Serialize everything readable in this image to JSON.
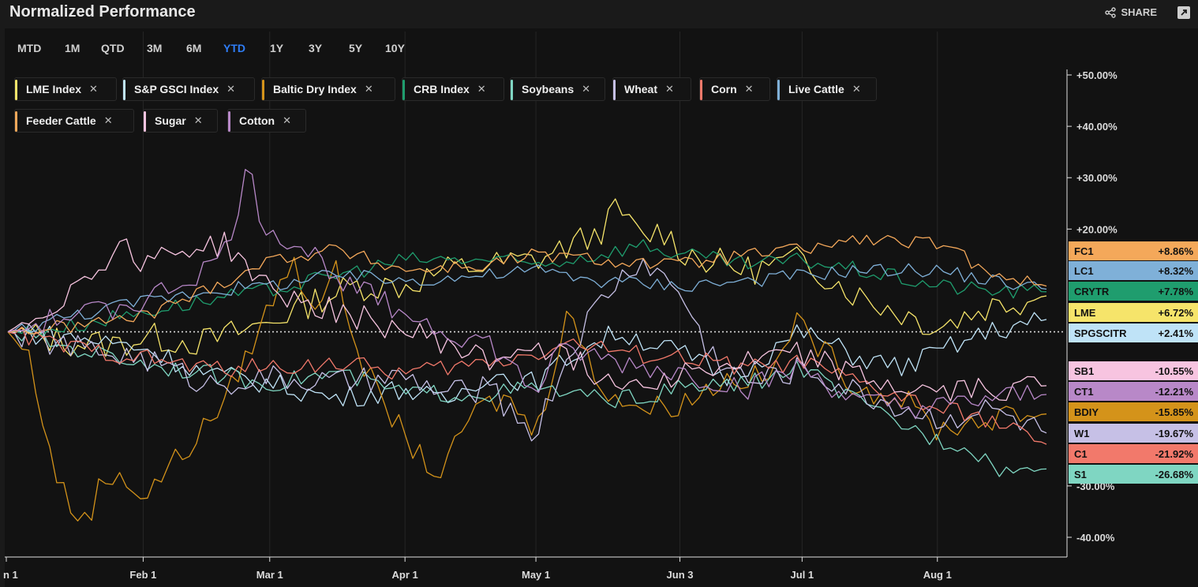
{
  "header": {
    "title": "Normalized Performance",
    "share_label": "SHARE"
  },
  "ranges": [
    {
      "label": "MTD",
      "active": false
    },
    {
      "label": "1M",
      "active": false
    },
    {
      "label": "QTD",
      "active": false
    },
    {
      "label": "3M",
      "active": false
    },
    {
      "label": "6M",
      "active": false
    },
    {
      "label": "YTD",
      "active": true
    },
    {
      "label": "1Y",
      "active": false
    },
    {
      "label": "3Y",
      "active": false
    },
    {
      "label": "5Y",
      "active": false
    },
    {
      "label": "10Y",
      "active": false
    }
  ],
  "chips": [
    {
      "label": "LME Index",
      "color": "#f6e46a"
    },
    {
      "label": "S&P GSCI Index",
      "color": "#bfe3f7"
    },
    {
      "label": "Baltic Dry Index",
      "color": "#d4931a"
    },
    {
      "label": "CRB Index",
      "color": "#1f9d6e"
    },
    {
      "label": "Soybeans",
      "color": "#7fd6c2"
    },
    {
      "label": "Wheat",
      "color": "#c6c0e6"
    },
    {
      "label": "Corn",
      "color": "#f2796b"
    },
    {
      "label": "Live Cattle",
      "color": "#7fb0d8"
    },
    {
      "label": "Feeder Cattle",
      "color": "#f4a85a"
    },
    {
      "label": "Sugar",
      "color": "#f7c4e0"
    },
    {
      "label": "Cotton",
      "color": "#b888c8"
    }
  ],
  "chart_data": {
    "type": "line",
    "x_ticks": [
      "n 1",
      "Feb 1",
      "Mar 1",
      "Apr 1",
      "May 1",
      "Jun 3",
      "Jul 1",
      "Aug 1"
    ],
    "y_ticks": [
      "+50.00%",
      "+40.00%",
      "+30.00%",
      "+20.00%",
      "-30.00%",
      "-40.00%"
    ],
    "ylim": [
      -40,
      50
    ],
    "x_anchors": [
      0,
      31,
      60,
      91,
      121,
      154,
      182,
      213
    ],
    "x_max": 238,
    "series": [
      {
        "name": "LME Index",
        "symbol": "LME",
        "final": "+6.72%",
        "color": "#f6e46a",
        "amp": 3.0,
        "points": [
          [
            0,
            0
          ],
          [
            14,
            -2
          ],
          [
            25,
            -2.5
          ],
          [
            31,
            -1
          ],
          [
            45,
            -2
          ],
          [
            55,
            0.5
          ],
          [
            60,
            2
          ],
          [
            70,
            6
          ],
          [
            80,
            9
          ],
          [
            91,
            9
          ],
          [
            100,
            12
          ],
          [
            110,
            13
          ],
          [
            121,
            14
          ],
          [
            135,
            19
          ],
          [
            140,
            24
          ],
          [
            145,
            18
          ],
          [
            150,
            20
          ],
          [
            154,
            16
          ],
          [
            160,
            14
          ],
          [
            170,
            12
          ],
          [
            182,
            14
          ],
          [
            195,
            7
          ],
          [
            213,
            1
          ],
          [
            225,
            5
          ],
          [
            238,
            7
          ]
        ]
      },
      {
        "name": "S&P GSCI Index",
        "symbol": "SPGSCITR",
        "final": "+2.41%",
        "color": "#bfe3f7",
        "amp": 2.2,
        "points": [
          [
            0,
            0
          ],
          [
            14,
            -1
          ],
          [
            31,
            -3
          ],
          [
            45,
            -8
          ],
          [
            60,
            -10
          ],
          [
            75,
            -13
          ],
          [
            91,
            -11
          ],
          [
            100,
            -14
          ],
          [
            110,
            -8
          ],
          [
            121,
            -10
          ],
          [
            130,
            -4
          ],
          [
            140,
            0
          ],
          [
            154,
            -4
          ],
          [
            165,
            -9
          ],
          [
            182,
            0
          ],
          [
            195,
            -5
          ],
          [
            205,
            -7
          ],
          [
            213,
            -4
          ],
          [
            225,
            0
          ],
          [
            238,
            2.4
          ]
        ]
      },
      {
        "name": "Baltic Dry Index",
        "symbol": "BDIY",
        "final": "-15.85%",
        "color": "#d4931a",
        "amp": 2.5,
        "points": [
          [
            0,
            0
          ],
          [
            5,
            -5
          ],
          [
            10,
            -25
          ],
          [
            14,
            -34
          ],
          [
            18,
            -37
          ],
          [
            21,
            -30
          ],
          [
            26,
            -27
          ],
          [
            31,
            -33
          ],
          [
            36,
            -27
          ],
          [
            42,
            -22
          ],
          [
            50,
            -13
          ],
          [
            55,
            -4
          ],
          [
            60,
            5
          ],
          [
            65,
            14
          ],
          [
            70,
            5
          ],
          [
            75,
            12
          ],
          [
            80,
            -3
          ],
          [
            85,
            -13
          ],
          [
            95,
            -25
          ],
          [
            100,
            -28
          ],
          [
            105,
            -17
          ],
          [
            110,
            -14
          ],
          [
            115,
            -13
          ],
          [
            121,
            -20
          ],
          [
            125,
            -7
          ],
          [
            128,
            5
          ],
          [
            135,
            -10
          ],
          [
            145,
            -15
          ],
          [
            154,
            -14
          ],
          [
            165,
            -9
          ],
          [
            175,
            -9
          ],
          [
            180,
            2
          ],
          [
            183,
            0
          ],
          [
            195,
            -11
          ],
          [
            205,
            -13
          ],
          [
            213,
            -19
          ],
          [
            225,
            -17
          ],
          [
            238,
            -16
          ]
        ]
      },
      {
        "name": "CRB Index",
        "symbol": "CRYTR",
        "final": "+7.78%",
        "color": "#1f9d6e",
        "amp": 1.6,
        "points": [
          [
            0,
            0
          ],
          [
            14,
            1
          ],
          [
            31,
            4
          ],
          [
            45,
            6
          ],
          [
            60,
            8
          ],
          [
            75,
            11
          ],
          [
            91,
            14
          ],
          [
            110,
            14
          ],
          [
            121,
            13
          ],
          [
            135,
            15
          ],
          [
            145,
            17
          ],
          [
            154,
            15
          ],
          [
            170,
            13
          ],
          [
            182,
            14
          ],
          [
            195,
            12
          ],
          [
            213,
            9
          ],
          [
            225,
            8
          ],
          [
            238,
            7.8
          ]
        ]
      },
      {
        "name": "Soybeans",
        "symbol": "S1",
        "final": "-26.68%",
        "color": "#7fd6c2",
        "amp": 1.8,
        "points": [
          [
            0,
            0
          ],
          [
            14,
            -3
          ],
          [
            31,
            -6
          ],
          [
            45,
            -8
          ],
          [
            60,
            -10
          ],
          [
            75,
            -8
          ],
          [
            91,
            -12
          ],
          [
            110,
            -12
          ],
          [
            121,
            -11
          ],
          [
            135,
            -13
          ],
          [
            145,
            -13
          ],
          [
            154,
            -11
          ],
          [
            170,
            -10
          ],
          [
            182,
            -7
          ],
          [
            195,
            -14
          ],
          [
            205,
            -18
          ],
          [
            213,
            -21
          ],
          [
            220,
            -22
          ],
          [
            228,
            -27
          ],
          [
            238,
            -26.7
          ]
        ]
      },
      {
        "name": "Wheat",
        "symbol": "W1",
        "final": "-19.67%",
        "color": "#c6c0e6",
        "amp": 2.6,
        "points": [
          [
            0,
            0
          ],
          [
            14,
            -3
          ],
          [
            31,
            -5
          ],
          [
            45,
            -10
          ],
          [
            60,
            -9
          ],
          [
            75,
            -10
          ],
          [
            91,
            -9
          ],
          [
            100,
            -12
          ],
          [
            110,
            -11
          ],
          [
            121,
            -20
          ],
          [
            125,
            -11
          ],
          [
            130,
            -2
          ],
          [
            135,
            5
          ],
          [
            140,
            10
          ],
          [
            145,
            14
          ],
          [
            154,
            8
          ],
          [
            160,
            -3
          ],
          [
            170,
            -10
          ],
          [
            182,
            -7
          ],
          [
            195,
            -12
          ],
          [
            213,
            -17
          ],
          [
            225,
            -15
          ],
          [
            238,
            -19.7
          ]
        ]
      },
      {
        "name": "Corn",
        "symbol": "C1",
        "final": "-21.92%",
        "color": "#f2796b",
        "amp": 1.8,
        "points": [
          [
            0,
            0
          ],
          [
            14,
            -3
          ],
          [
            31,
            -5
          ],
          [
            45,
            -7
          ],
          [
            60,
            -7
          ],
          [
            75,
            -6
          ],
          [
            91,
            -8
          ],
          [
            100,
            -7
          ],
          [
            110,
            -6
          ],
          [
            121,
            -4
          ],
          [
            130,
            -2
          ],
          [
            140,
            -4
          ],
          [
            154,
            -5
          ],
          [
            170,
            -7
          ],
          [
            182,
            -6
          ],
          [
            195,
            -10
          ],
          [
            213,
            -15
          ],
          [
            225,
            -17
          ],
          [
            238,
            -21.9
          ]
        ]
      },
      {
        "name": "Live Cattle",
        "symbol": "LC1",
        "final": "+8.32%",
        "color": "#7fb0d8",
        "amp": 1.4,
        "points": [
          [
            0,
            0
          ],
          [
            14,
            3
          ],
          [
            31,
            6
          ],
          [
            45,
            8
          ],
          [
            60,
            9
          ],
          [
            75,
            11
          ],
          [
            91,
            10
          ],
          [
            110,
            11
          ],
          [
            121,
            12
          ],
          [
            135,
            10
          ],
          [
            154,
            9
          ],
          [
            170,
            10
          ],
          [
            182,
            11
          ],
          [
            195,
            12
          ],
          [
            213,
            12
          ],
          [
            225,
            10
          ],
          [
            238,
            8.3
          ]
        ]
      },
      {
        "name": "Feeder Cattle",
        "symbol": "FC1",
        "final": "+8.86%",
        "color": "#f4a85a",
        "amp": 1.4,
        "points": [
          [
            0,
            0
          ],
          [
            14,
            1
          ],
          [
            31,
            3
          ],
          [
            45,
            8
          ],
          [
            60,
            14
          ],
          [
            75,
            16
          ],
          [
            91,
            12
          ],
          [
            110,
            13
          ],
          [
            121,
            15
          ],
          [
            135,
            14
          ],
          [
            154,
            13
          ],
          [
            170,
            15
          ],
          [
            182,
            16
          ],
          [
            195,
            18
          ],
          [
            213,
            17
          ],
          [
            225,
            12
          ],
          [
            238,
            8.9
          ]
        ]
      },
      {
        "name": "Sugar",
        "symbol": "SB1",
        "final": "-10.55%",
        "color": "#f7c4e0",
        "amp": 2.6,
        "points": [
          [
            0,
            0
          ],
          [
            10,
            5
          ],
          [
            20,
            12
          ],
          [
            25,
            17
          ],
          [
            31,
            14
          ],
          [
            40,
            16
          ],
          [
            50,
            17
          ],
          [
            60,
            8
          ],
          [
            70,
            5
          ],
          [
            80,
            3
          ],
          [
            91,
            0
          ],
          [
            100,
            -2
          ],
          [
            110,
            -6
          ],
          [
            121,
            -2
          ],
          [
            130,
            -6
          ],
          [
            140,
            -10
          ],
          [
            154,
            -8
          ],
          [
            170,
            -6
          ],
          [
            182,
            -4
          ],
          [
            195,
            -9
          ],
          [
            205,
            -11
          ],
          [
            213,
            -12
          ],
          [
            225,
            -11
          ],
          [
            238,
            -10.5
          ]
        ]
      },
      {
        "name": "Cotton",
        "symbol": "CT1",
        "final": "-12.21%",
        "color": "#b888c8",
        "amp": 2.4,
        "points": [
          [
            0,
            0
          ],
          [
            14,
            3
          ],
          [
            31,
            6
          ],
          [
            45,
            12
          ],
          [
            50,
            16
          ],
          [
            55,
            32
          ],
          [
            58,
            22
          ],
          [
            60,
            20
          ],
          [
            70,
            15
          ],
          [
            80,
            8
          ],
          [
            91,
            4
          ],
          [
            100,
            0
          ],
          [
            110,
            -2
          ],
          [
            121,
            -12
          ],
          [
            125,
            -5
          ],
          [
            130,
            -4
          ],
          [
            140,
            -6
          ],
          [
            154,
            -8
          ],
          [
            170,
            -11
          ],
          [
            182,
            -7
          ],
          [
            195,
            -14
          ],
          [
            213,
            -15
          ],
          [
            225,
            -13
          ],
          [
            238,
            -12.2
          ]
        ]
      }
    ]
  }
}
